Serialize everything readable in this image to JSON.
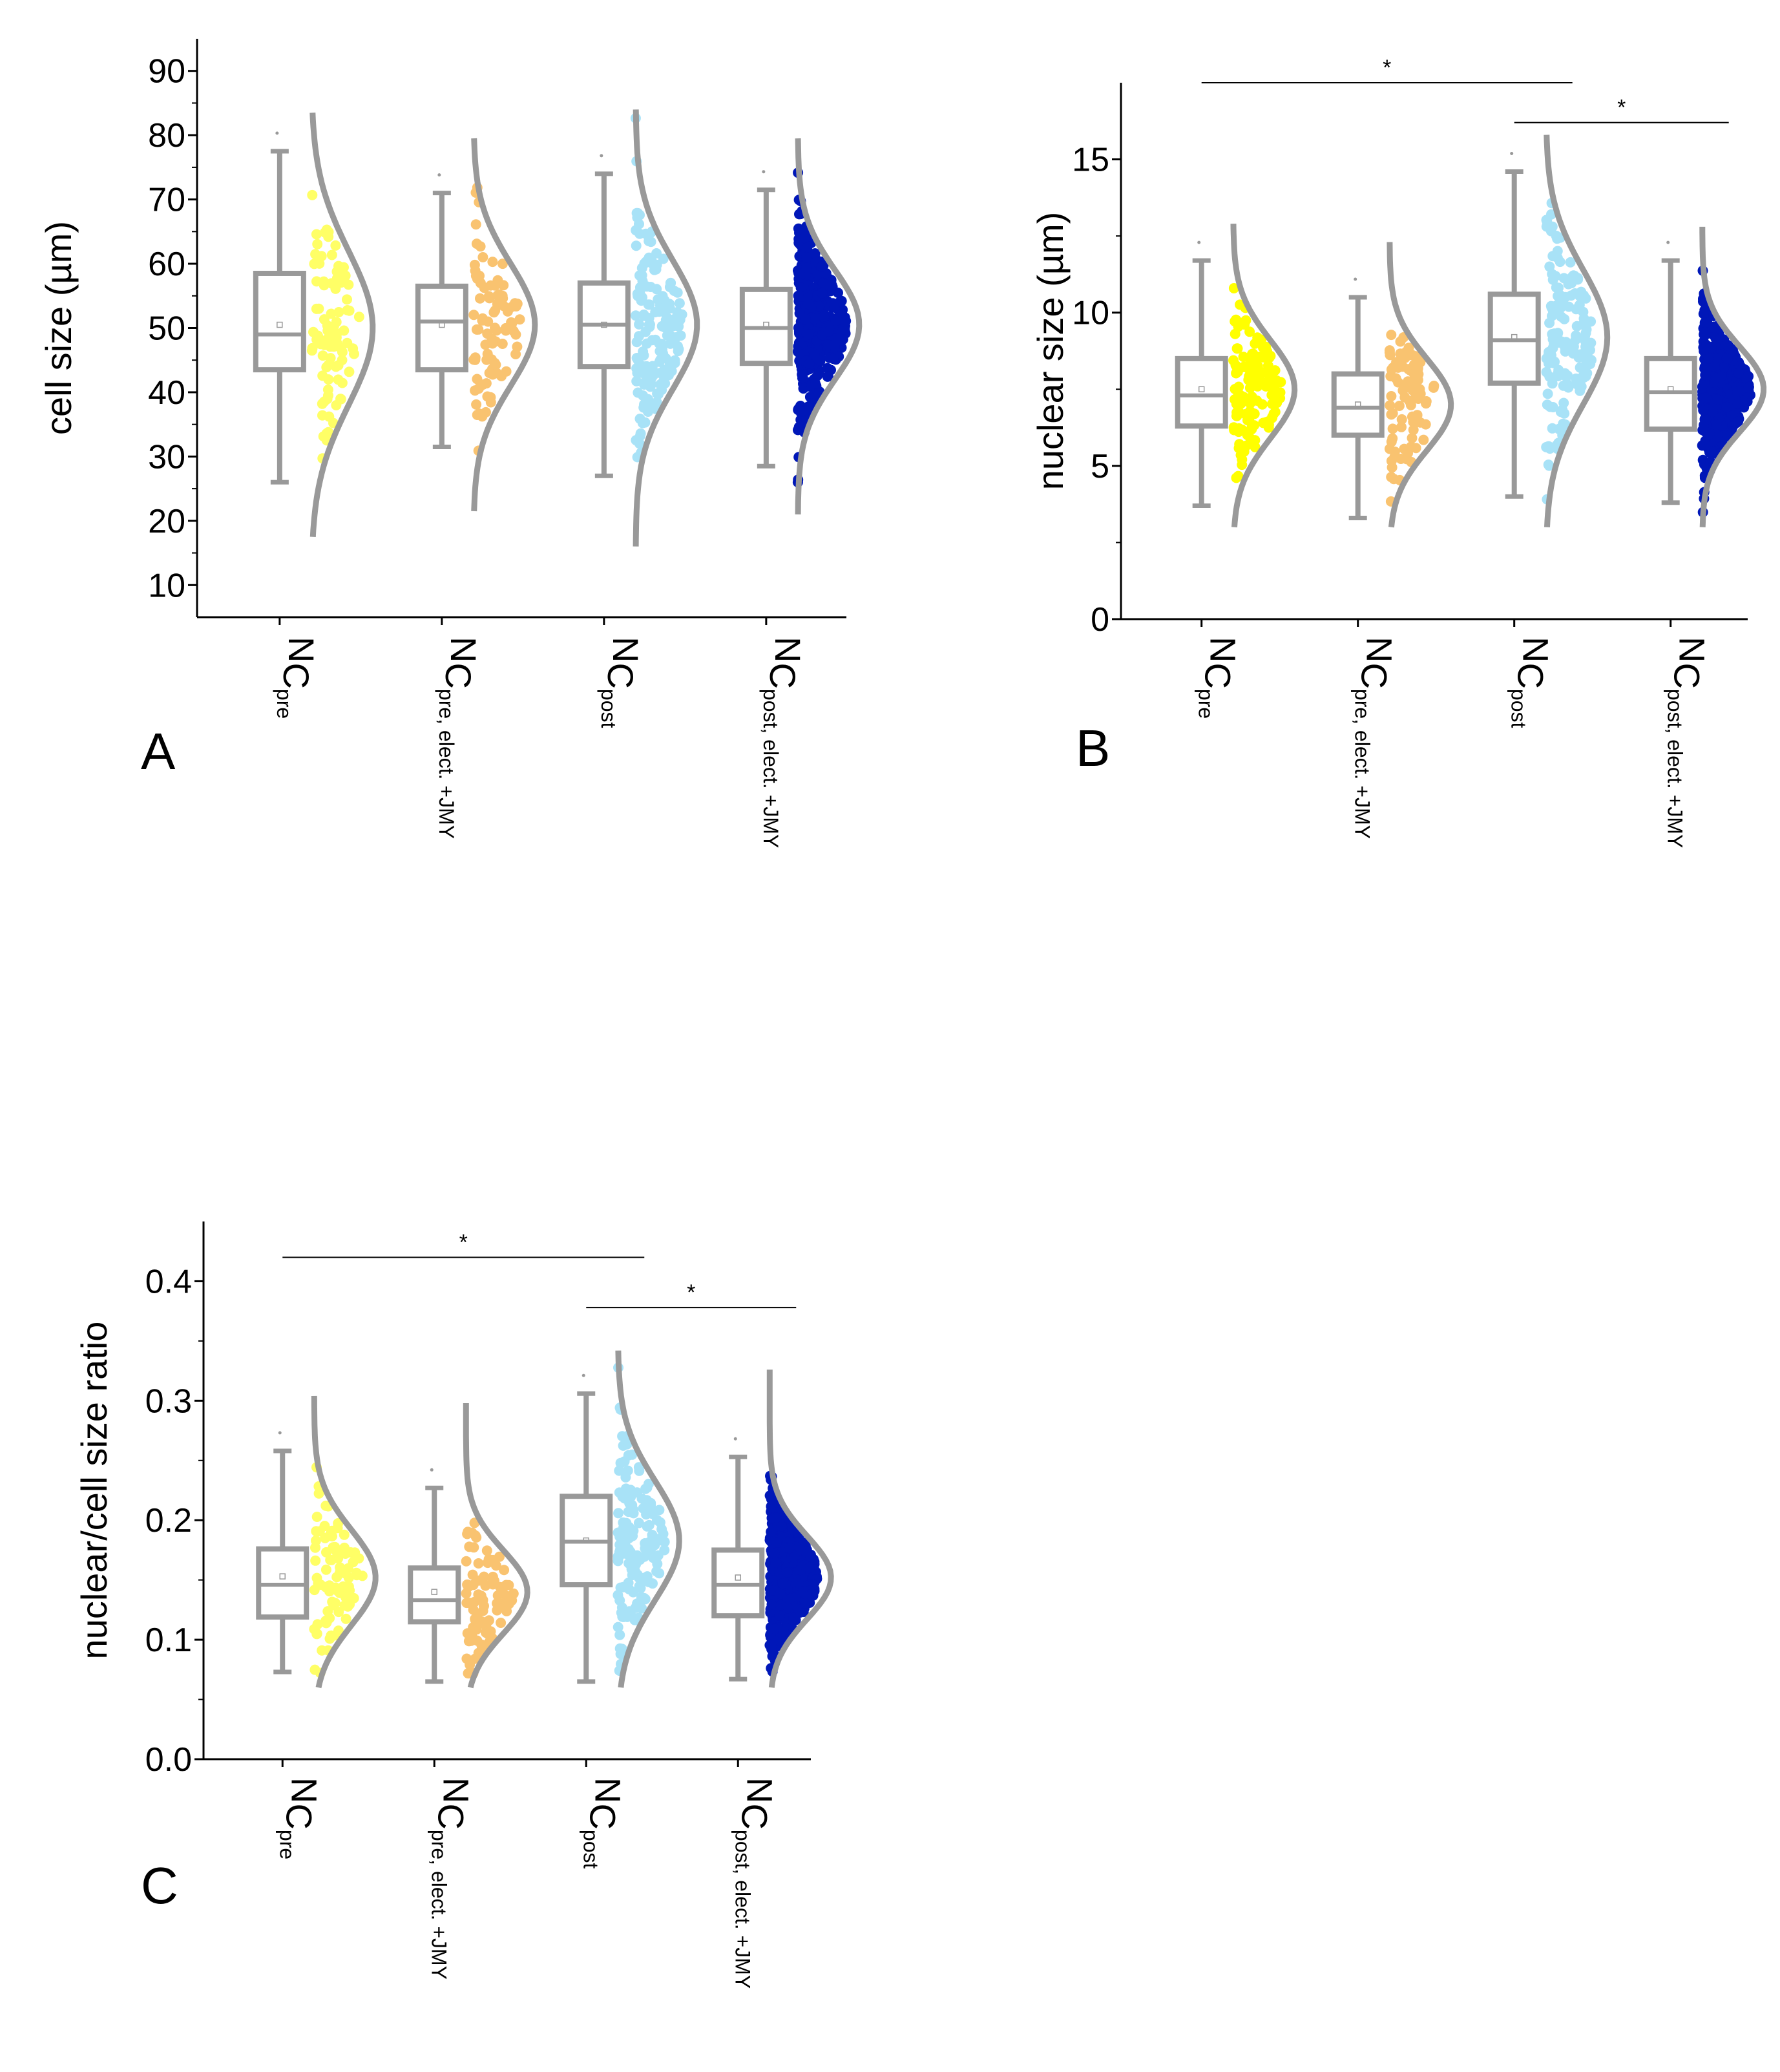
{
  "colors": {
    "box": "#999999",
    "axis": "#000000",
    "series": [
      "#ffff66",
      "#f9c370",
      "#a8e2f7",
      "#0017b8"
    ],
    "series_b": [
      "#ffff00",
      "#f9c370",
      "#a8e2f7",
      "#0017b8"
    ]
  },
  "chart_data": [
    {
      "type": "box",
      "panel": "A",
      "title": "",
      "ylabel": "cell size (µm)",
      "xlabel": "",
      "ylim": [
        5,
        95
      ],
      "yticks": [
        10,
        20,
        30,
        40,
        50,
        60,
        70,
        80,
        90
      ],
      "categories": [
        {
          "main": "N",
          "sub": "C",
          "sub2": "pre"
        },
        {
          "main": "N",
          "sub": "C",
          "sub2": "pre, elect. +JMY"
        },
        {
          "main": "N",
          "sub": "C",
          "sub2": "post"
        },
        {
          "main": "N",
          "sub": "C",
          "sub2": "post, elect. +JMY"
        }
      ],
      "series": [
        {
          "name": "NC pre",
          "whisker_low": 26,
          "q1": 43.5,
          "median": 49,
          "q3": 58.5,
          "whisker_high": 77.5,
          "mean": 50.5,
          "dist_low": 17.5,
          "dist_high": 83.5,
          "dist_mean": 50,
          "dist_sd": 12,
          "n": 90
        },
        {
          "name": "NC pre, elect. +JMY",
          "whisker_low": 31.5,
          "q1": 43.5,
          "median": 51,
          "q3": 56.5,
          "whisker_high": 71,
          "mean": 50.5,
          "dist_low": 21.5,
          "dist_high": 79.5,
          "dist_mean": 50.5,
          "dist_sd": 9.5,
          "n": 90
        },
        {
          "name": "NC post",
          "whisker_low": 27,
          "q1": 44,
          "median": 50.5,
          "q3": 57,
          "whisker_high": 74,
          "mean": 50.5,
          "dist_low": 16,
          "dist_high": 84,
          "dist_mean": 50.5,
          "dist_sd": 10,
          "n": 160
        },
        {
          "name": "NC post, elect. +JMY",
          "whisker_low": 28.5,
          "q1": 44.5,
          "median": 50,
          "q3": 56,
          "whisker_high": 71.5,
          "mean": 50.5,
          "dist_low": 21,
          "dist_high": 79.5,
          "dist_mean": 50.5,
          "dist_sd": 8.5,
          "n": 420
        }
      ],
      "significance": []
    },
    {
      "type": "box",
      "panel": "B",
      "title": "",
      "ylabel": "nuclear size (µm)",
      "xlabel": "",
      "ylim": [
        0,
        17.5
      ],
      "yticks": [
        0,
        5,
        10,
        15
      ],
      "categories": [
        {
          "main": "N",
          "sub": "C",
          "sub2": "pre"
        },
        {
          "main": "N",
          "sub": "C",
          "sub2": "pre, elect. +JMY"
        },
        {
          "main": "N",
          "sub": "C",
          "sub2": "post"
        },
        {
          "main": "N",
          "sub": "C",
          "sub2": "post, elect. +JMY"
        }
      ],
      "series": [
        {
          "name": "NC pre",
          "whisker_low": 3.7,
          "q1": 6.3,
          "median": 7.3,
          "q3": 8.5,
          "whisker_high": 11.7,
          "mean": 7.5,
          "dist_low": 3.0,
          "dist_high": 12.9,
          "dist_mean": 7.5,
          "dist_sd": 1.6,
          "n": 130
        },
        {
          "name": "NC pre, elect. +JMY",
          "whisker_low": 3.3,
          "q1": 6.0,
          "median": 6.9,
          "q3": 8.0,
          "whisker_high": 10.5,
          "mean": 7.0,
          "dist_low": 3.0,
          "dist_high": 12.3,
          "dist_mean": 7.0,
          "dist_sd": 1.5,
          "n": 90
        },
        {
          "name": "NC post",
          "whisker_low": 4.0,
          "q1": 7.7,
          "median": 9.1,
          "q3": 10.6,
          "whisker_high": 14.6,
          "mean": 9.2,
          "dist_low": 3.0,
          "dist_high": 15.8,
          "dist_mean": 9.2,
          "dist_sd": 2.2,
          "n": 160
        },
        {
          "name": "NC post, elect. +JMY",
          "whisker_low": 3.8,
          "q1": 6.2,
          "median": 7.4,
          "q3": 8.5,
          "whisker_high": 11.7,
          "mean": 7.5,
          "dist_low": 3.0,
          "dist_high": 12.8,
          "dist_mean": 7.5,
          "dist_sd": 1.4,
          "n": 420
        }
      ],
      "significance": [
        {
          "label": "*",
          "from": 0,
          "to": 2,
          "y": 17.5
        },
        {
          "label": "*",
          "from": 2,
          "to": 3,
          "y": 16.2
        }
      ]
    },
    {
      "type": "box",
      "panel": "C",
      "title": "",
      "ylabel": "nuclear/cell size ratio",
      "xlabel": "",
      "ylim": [
        0,
        0.45
      ],
      "yticks": [
        0.0,
        0.1,
        0.2,
        0.3,
        0.4
      ],
      "ytick_labels": [
        "0.0",
        "0.1",
        "0.2",
        "0.3",
        "0.4"
      ],
      "categories": [
        {
          "main": "N",
          "sub": "C",
          "sub2": "pre"
        },
        {
          "main": "N",
          "sub": "C",
          "sub2": "pre, elect. +JMY"
        },
        {
          "main": "N",
          "sub": "C",
          "sub2": "post"
        },
        {
          "main": "N",
          "sub": "C",
          "sub2": "post, elect. +JMY"
        }
      ],
      "series": [
        {
          "name": "NC pre",
          "whisker_low": 0.073,
          "q1": 0.119,
          "median": 0.146,
          "q3": 0.176,
          "whisker_high": 0.258,
          "mean": 0.153,
          "dist_low": 0.06,
          "dist_high": 0.304,
          "dist_mean": 0.152,
          "dist_sd": 0.04,
          "n": 90
        },
        {
          "name": "NC pre, elect. +JMY",
          "whisker_low": 0.065,
          "q1": 0.115,
          "median": 0.133,
          "q3": 0.16,
          "whisker_high": 0.227,
          "mean": 0.14,
          "dist_low": 0.06,
          "dist_high": 0.298,
          "dist_mean": 0.14,
          "dist_sd": 0.035,
          "n": 90
        },
        {
          "name": "NC post",
          "whisker_low": 0.065,
          "q1": 0.146,
          "median": 0.182,
          "q3": 0.22,
          "whisker_high": 0.306,
          "mean": 0.183,
          "dist_low": 0.06,
          "dist_high": 0.342,
          "dist_mean": 0.183,
          "dist_sd": 0.05,
          "n": 160
        },
        {
          "name": "NC post, elect. +JMY",
          "whisker_low": 0.067,
          "q1": 0.12,
          "median": 0.146,
          "q3": 0.175,
          "whisker_high": 0.253,
          "mean": 0.152,
          "dist_low": 0.06,
          "dist_high": 0.326,
          "dist_mean": 0.152,
          "dist_sd": 0.035,
          "n": 420
        }
      ],
      "significance": [
        {
          "label": "*",
          "from": 0,
          "to": 2,
          "y": 0.42
        },
        {
          "label": "*",
          "from": 2,
          "to": 3,
          "y": 0.378
        }
      ]
    }
  ]
}
